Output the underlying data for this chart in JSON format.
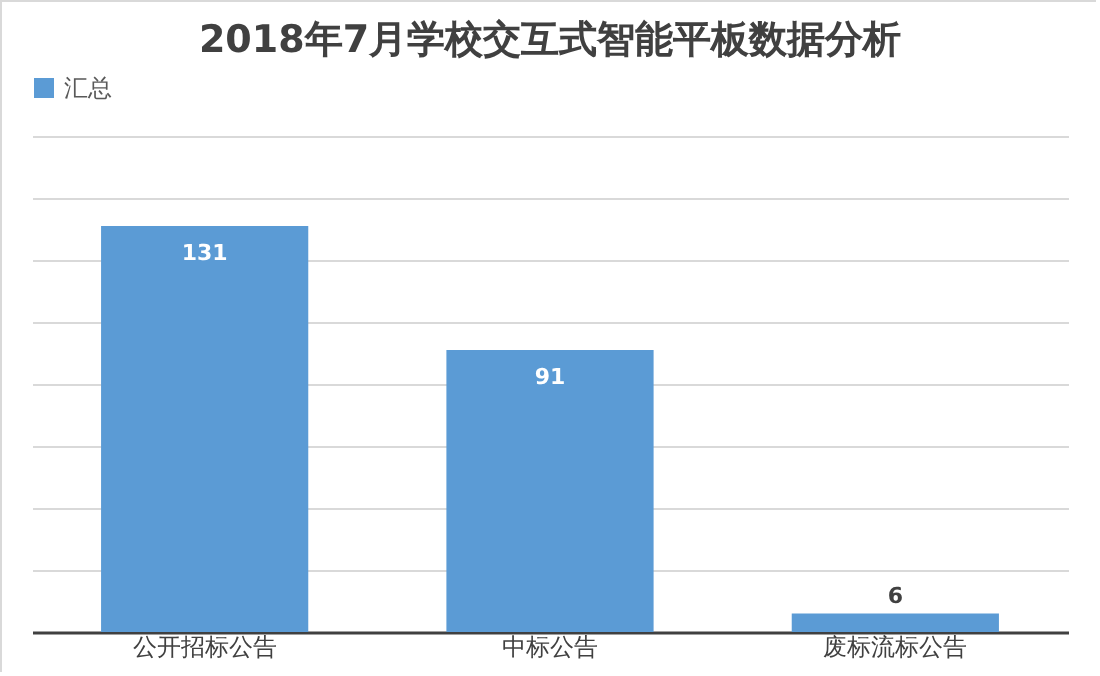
{
  "chart_data": {
    "type": "bar",
    "title": "2018年7月学校交互式智能平板数据分析",
    "categories": [
      "公开招标公告",
      "中标公告",
      "废标流标公告"
    ],
    "series": [
      {
        "name": "汇总",
        "color": "#5b9bd5",
        "values": [
          131,
          91,
          6
        ]
      }
    ],
    "ylim": [
      0,
      160
    ],
    "yticks": [
      {
        "value": 0,
        "label": null
      },
      {
        "value": 20,
        "label": null
      },
      {
        "value": 40,
        "label": null
      },
      {
        "value": 60,
        "label": null
      },
      {
        "value": 80,
        "label": null
      },
      {
        "value": 100,
        "label": null
      },
      {
        "value": 120,
        "label": null
      },
      {
        "value": 140,
        "label": null
      },
      {
        "value": 160,
        "label": null
      }
    ],
    "tick_labels": "x",
    "grid": "y",
    "legend": "top",
    "data_labels": true
  }
}
